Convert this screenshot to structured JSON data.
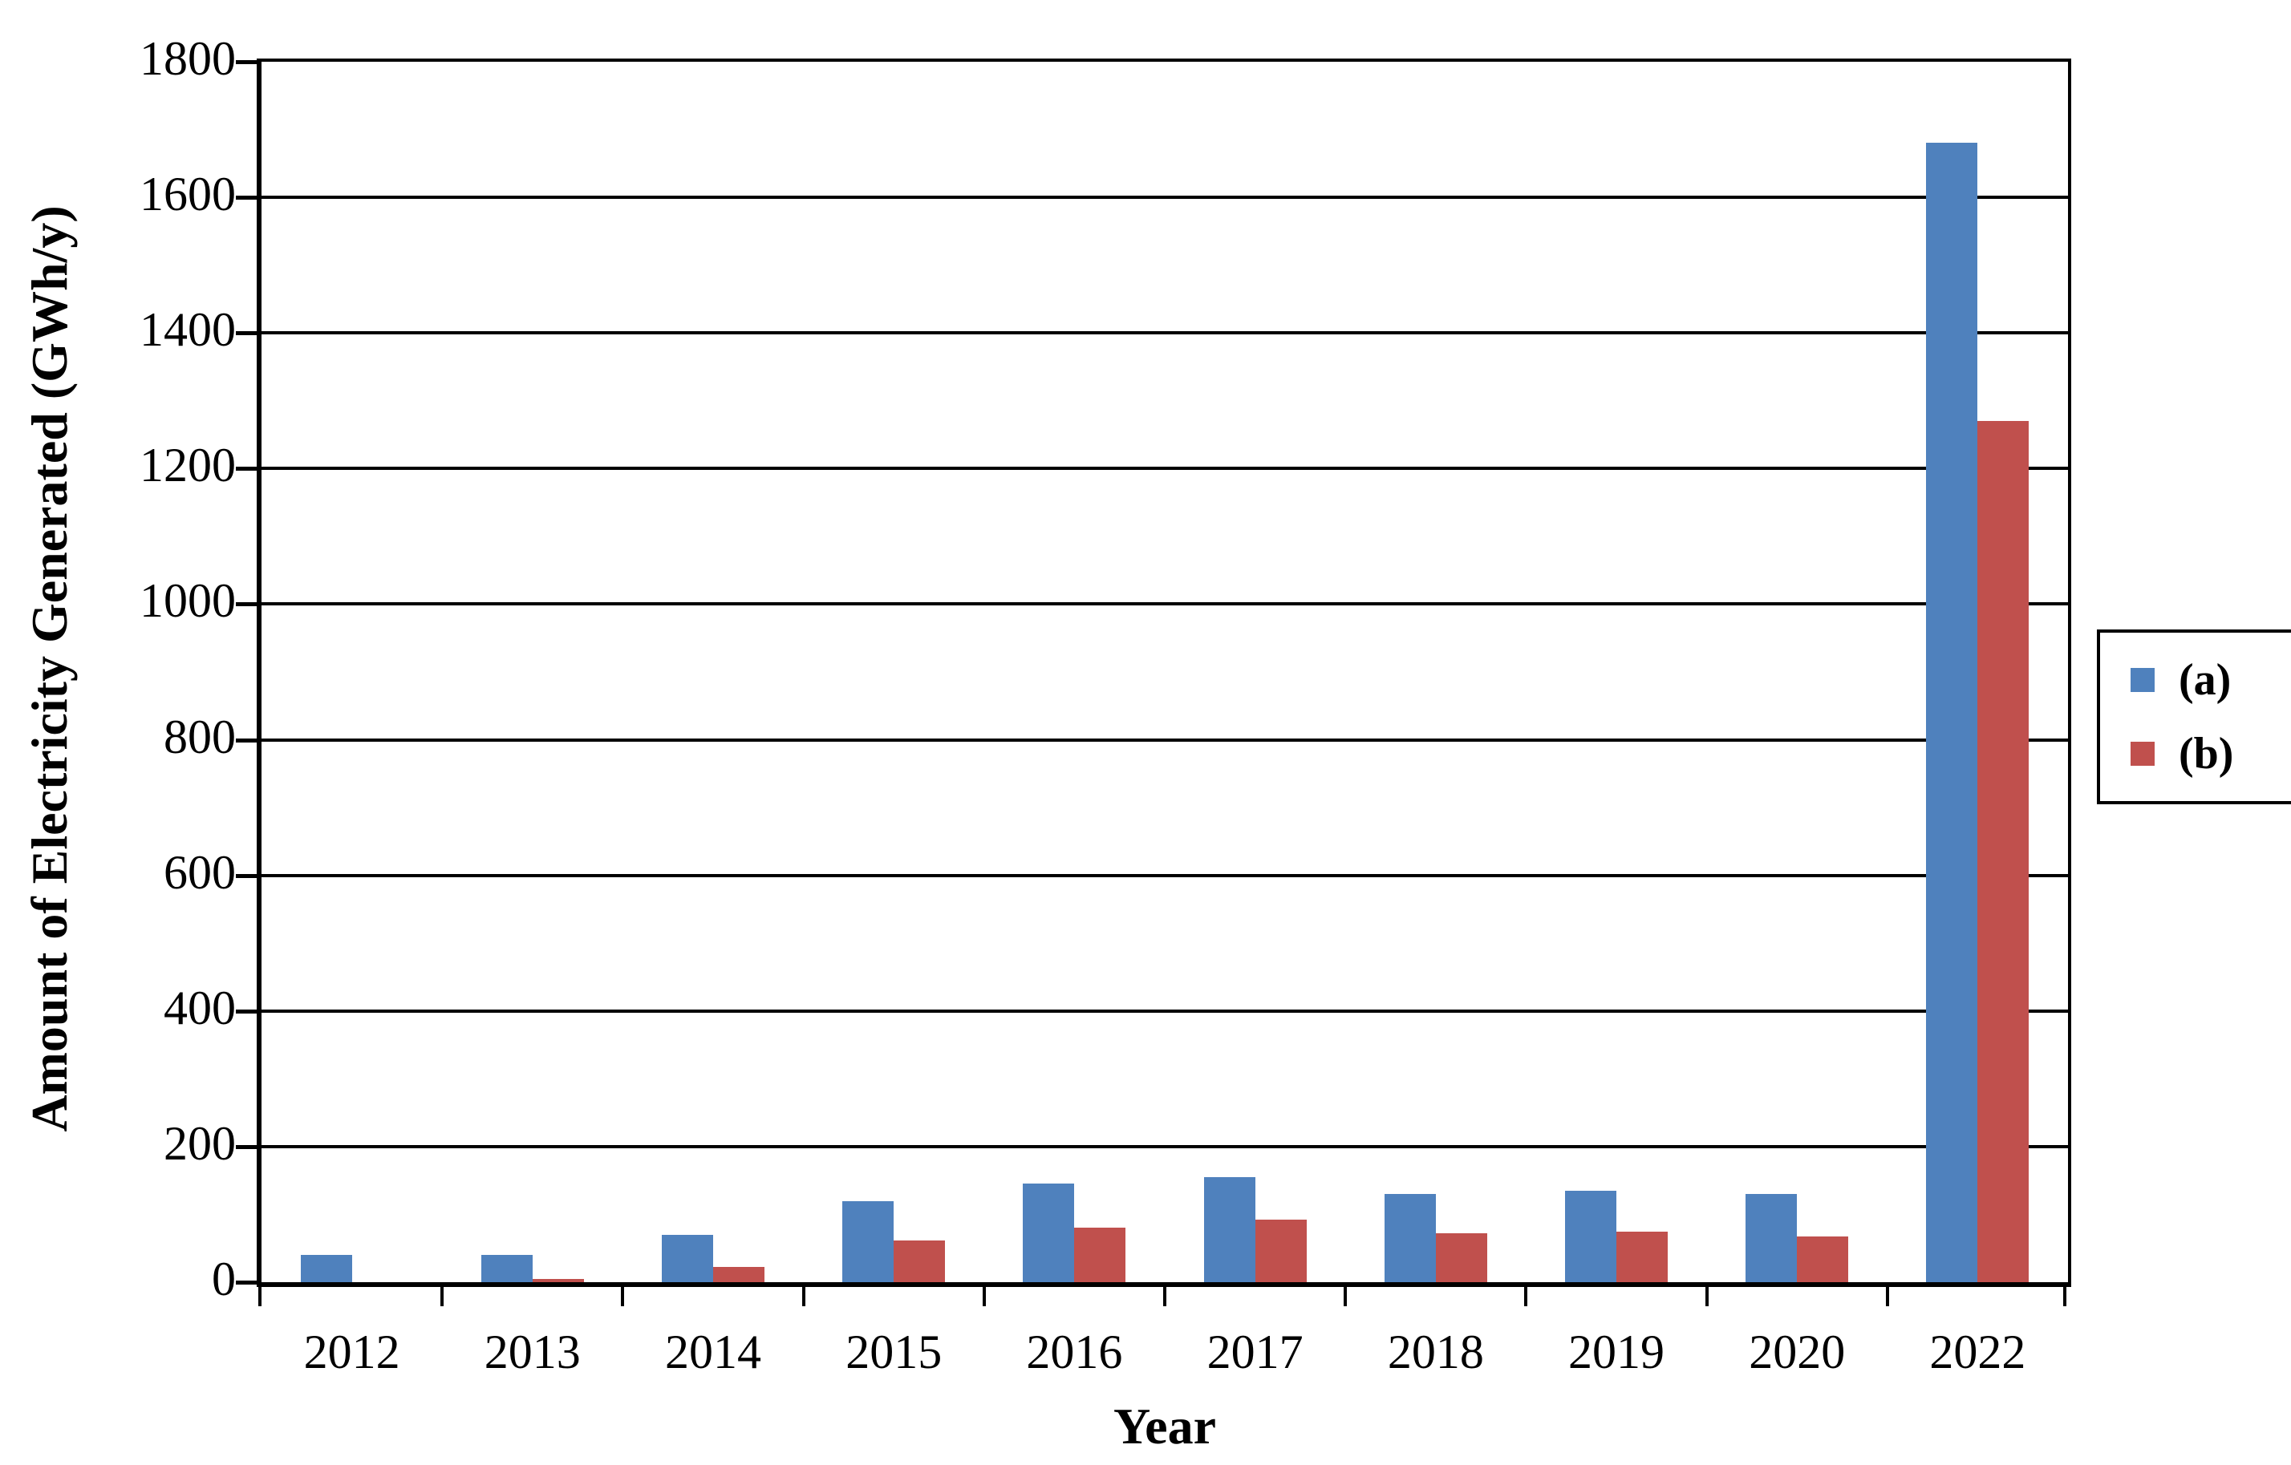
{
  "chart_data": {
    "type": "bar",
    "title": "",
    "xlabel": "Year",
    "ylabel": "Amount of Electricity Generated (GWh/y)",
    "categories": [
      "2012",
      "2013",
      "2014",
      "2015",
      "2016",
      "2017",
      "2018",
      "2019",
      "2020",
      "2022"
    ],
    "series": [
      {
        "name": "(a)",
        "color": "#4F81BD",
        "values": [
          40,
          40,
          70,
          120,
          145,
          155,
          130,
          135,
          130,
          1680
        ]
      },
      {
        "name": "(b)",
        "color": "#C0504D",
        "values": [
          0,
          5,
          22,
          62,
          80,
          92,
          72,
          75,
          67,
          1270
        ]
      }
    ],
    "ylim": [
      0,
      1800
    ],
    "ytick_step": 200,
    "grid": true,
    "legend_position": "right",
    "axis_color": "#000000",
    "background_color": "#FFFFFF"
  }
}
